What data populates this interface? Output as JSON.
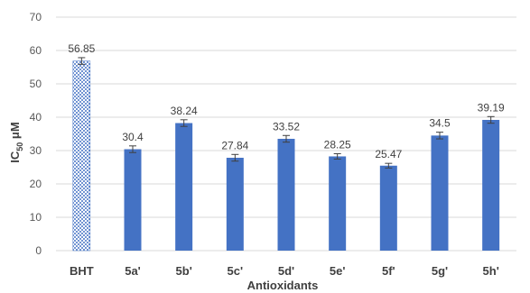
{
  "chart_data": {
    "type": "bar",
    "categories": [
      "BHT",
      "5a'",
      "5b'",
      "5c'",
      "5d'",
      "5e'",
      "5f'",
      "5g'",
      "5h'"
    ],
    "values": [
      56.85,
      30.4,
      38.24,
      27.84,
      33.52,
      28.25,
      25.47,
      34.5,
      39.19
    ],
    "value_labels": [
      "56.85",
      "30.4",
      "38.24",
      "27.84",
      "33.52",
      "28.25",
      "25.47",
      "34.5",
      "39.19"
    ],
    "errors": [
      1.0,
      1.0,
      1.0,
      1.0,
      1.0,
      0.8,
      0.7,
      1.0,
      1.0
    ],
    "title": "",
    "xlabel": "Antioxidants",
    "ylabel_main": "IC",
    "ylabel_sub": "50",
    "ylabel_unit": " μM",
    "ylim": [
      0,
      70
    ],
    "yticks": [
      0,
      10,
      20,
      30,
      40,
      50,
      60,
      70
    ],
    "grid": true,
    "legend": "none",
    "bar_color": "#4472c4",
    "reference_pattern": "dotted",
    "reference_category": "BHT"
  }
}
